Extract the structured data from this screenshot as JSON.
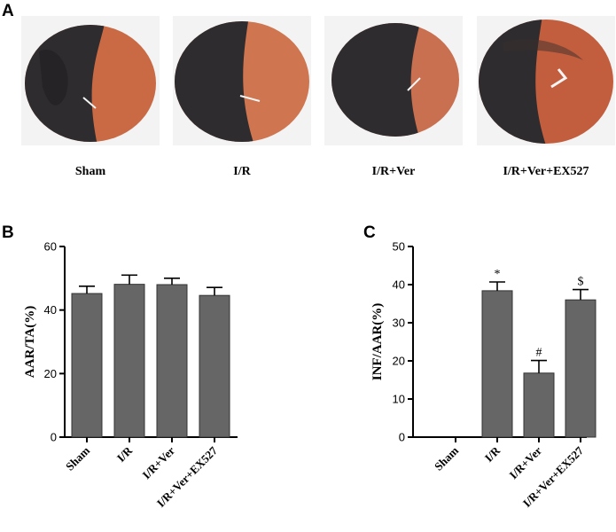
{
  "panels": {
    "a": "A",
    "b": "B",
    "c": "C"
  },
  "photos": [
    {
      "label": "Sham"
    },
    {
      "label": "I/R"
    },
    {
      "label": "I/R+Ver"
    },
    {
      "label": "I/R+Ver+EX527"
    }
  ],
  "colors": {
    "bar": "#666666",
    "axis": "#000000",
    "dark_tissue": "#2e2c2e",
    "red_tissue": "#c96a45"
  },
  "chart_data": [
    {
      "type": "bar",
      "categories": [
        "Sham",
        "I/R",
        "I/R+Ver",
        "I/R+Ver+EX527"
      ],
      "values": [
        45.2,
        48.1,
        48.0,
        44.6
      ],
      "errors": [
        2.3,
        2.9,
        2.0,
        2.5
      ],
      "ylabel": "AAR/TA(%)",
      "ylim": [
        0,
        60
      ],
      "yticks": [
        0,
        20,
        40,
        60
      ],
      "annotations": [
        "",
        "",
        "",
        ""
      ]
    },
    {
      "type": "bar",
      "categories": [
        "Sham",
        "I/R",
        "I/R+Ver",
        "I/R+Ver+EX527"
      ],
      "values": [
        0,
        38.4,
        16.8,
        36.0
      ],
      "errors": [
        0,
        2.3,
        3.3,
        2.7
      ],
      "ylabel": "INF/AAR(%)",
      "ylim": [
        0,
        50
      ],
      "yticks": [
        0,
        10,
        20,
        30,
        40,
        50
      ],
      "annotations": [
        "",
        "*",
        "#",
        "$"
      ]
    }
  ]
}
